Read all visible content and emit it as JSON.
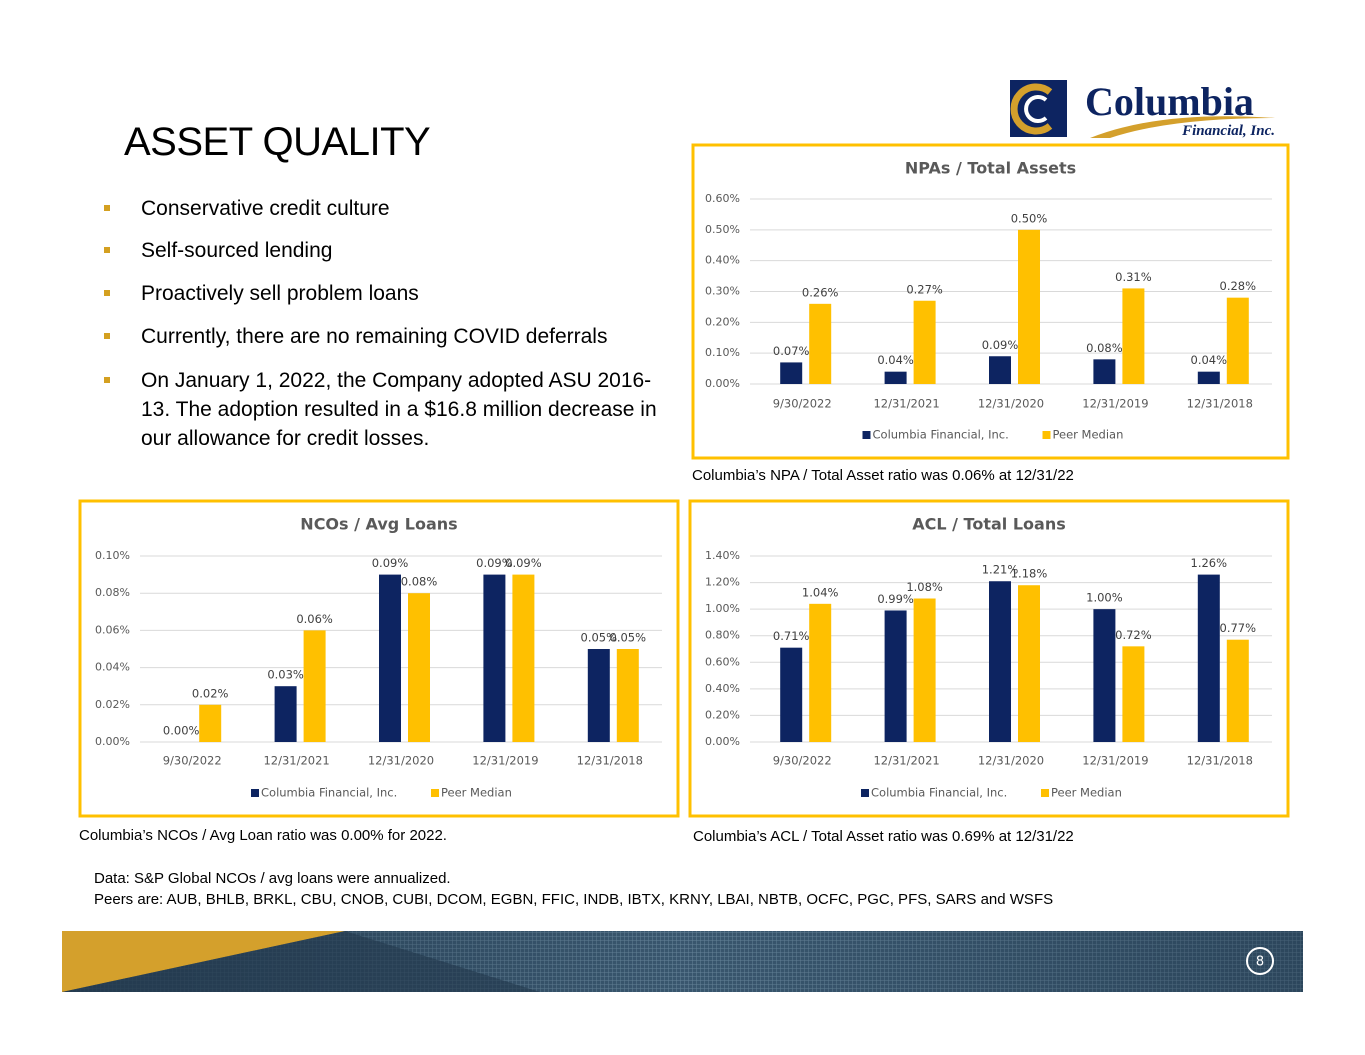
{
  "title": "ASSET QUALITY",
  "logo": {
    "name": "Columbia",
    "subname": "Financial, Inc."
  },
  "bullets": [
    "Conservative credit culture",
    "Self-sourced lending",
    "Proactively sell problem loans",
    "Currently, there are no remaining COVID deferrals",
    "On January 1, 2022, the Company adopted ASU 2016-13. The adoption resulted in a $16.8 million decrease in our allowance for credit losses."
  ],
  "captions": [
    "Columbia’s NPA / Total Asset ratio was 0.06% at 12/31/22",
    "Columbia’s NCOs / Avg Loan ratio was 0.00% for 2022.",
    "Columbia’s ACL / Total Asset ratio was 0.69% at 12/31/22"
  ],
  "footnotes": [
    "Data: S&P Global NCOs / avg loans were annualized.",
    "Peers are: AUB, BHLB, BRKL, CBU, CNOB, CUBI, DCOM, EGBN, FFIC, INDB, IBTX, KRNY, LBAI, NBTB, OCFC, PGC, PFS, SARS and WSFS"
  ],
  "page_number": "8",
  "chart_data": [
    {
      "type": "bar",
      "title": "NPAs / Total Assets",
      "categories": [
        "9/30/2022",
        "12/31/2021",
        "12/31/2020",
        "12/31/2019",
        "12/31/2018"
      ],
      "series": [
        {
          "name": "Columbia Financial, Inc.",
          "color": "#0d2461",
          "values": [
            0.07,
            0.04,
            0.09,
            0.08,
            0.04
          ],
          "value_labels": [
            "0.07%",
            "0.04%",
            "0.09%",
            "0.08%",
            "0.04%"
          ]
        },
        {
          "name": "Peer Median",
          "color": "#ffc000",
          "values": [
            0.26,
            0.27,
            0.5,
            0.31,
            0.28
          ],
          "value_labels": [
            "0.26%",
            "0.27%",
            "0.50%",
            "0.31%",
            "0.28%"
          ]
        }
      ],
      "ylim": [
        0,
        0.6
      ],
      "yticks": [
        {
          "value": 0,
          "label": "0.00%"
        },
        {
          "value": 0.1,
          "label": "0.10%"
        },
        {
          "value": 0.2,
          "label": "0.20%"
        },
        {
          "value": 0.3,
          "label": "0.30%"
        },
        {
          "value": 0.4,
          "label": "0.40%"
        },
        {
          "value": 0.5,
          "label": "0.50%"
        },
        {
          "value": 0.6,
          "label": "0.60%"
        }
      ],
      "grid": true,
      "legend": "bottom"
    },
    {
      "type": "bar",
      "title": "NCOs / Avg Loans",
      "categories": [
        "9/30/2022",
        "12/31/2021",
        "12/31/2020",
        "12/31/2019",
        "12/31/2018"
      ],
      "series": [
        {
          "name": "Columbia Financial, Inc.",
          "color": "#0d2461",
          "values": [
            0.0,
            0.03,
            0.09,
            0.09,
            0.05
          ],
          "value_labels": [
            "0.00%",
            "0.03%",
            "0.09%",
            "0.09%",
            "0.05%"
          ]
        },
        {
          "name": "Peer Median",
          "color": "#ffc000",
          "values": [
            0.02,
            0.06,
            0.08,
            0.09,
            0.05
          ],
          "value_labels": [
            "0.02%",
            "0.06%",
            "0.08%",
            "0.09%",
            "0.05%"
          ]
        }
      ],
      "ylim": [
        0,
        0.1
      ],
      "yticks": [
        {
          "value": 0,
          "label": "0.00%"
        },
        {
          "value": 0.02,
          "label": "0.02%"
        },
        {
          "value": 0.04,
          "label": "0.04%"
        },
        {
          "value": 0.06,
          "label": "0.06%"
        },
        {
          "value": 0.08,
          "label": "0.08%"
        },
        {
          "value": 0.1,
          "label": "0.10%"
        }
      ],
      "grid": true,
      "legend": "bottom"
    },
    {
      "type": "bar",
      "title": "ACL / Total Loans",
      "categories": [
        "9/30/2022",
        "12/31/2021",
        "12/31/2020",
        "12/31/2019",
        "12/31/2018"
      ],
      "series": [
        {
          "name": "Columbia Financial, Inc.",
          "color": "#0d2461",
          "values": [
            0.71,
            0.99,
            1.21,
            1.0,
            1.26
          ],
          "value_labels": [
            "0.71%",
            "0.99%",
            "1.21%",
            "1.00%",
            "1.26%"
          ]
        },
        {
          "name": "Peer Median",
          "color": "#ffc000",
          "values": [
            1.04,
            1.08,
            1.18,
            0.72,
            0.77
          ],
          "value_labels": [
            "1.04%",
            "1.08%",
            "1.18%",
            "0.72%",
            "0.77%"
          ]
        }
      ],
      "ylim": [
        0,
        1.4
      ],
      "yticks": [
        {
          "value": 0,
          "label": "0.00%"
        },
        {
          "value": 0.2,
          "label": "0.20%"
        },
        {
          "value": 0.4,
          "label": "0.40%"
        },
        {
          "value": 0.6,
          "label": "0.60%"
        },
        {
          "value": 0.8,
          "label": "0.80%"
        },
        {
          "value": 1.0,
          "label": "1.00%"
        },
        {
          "value": 1.2,
          "label": "1.20%"
        },
        {
          "value": 1.4,
          "label": "1.40%"
        }
      ],
      "grid": true,
      "legend": "bottom"
    }
  ]
}
